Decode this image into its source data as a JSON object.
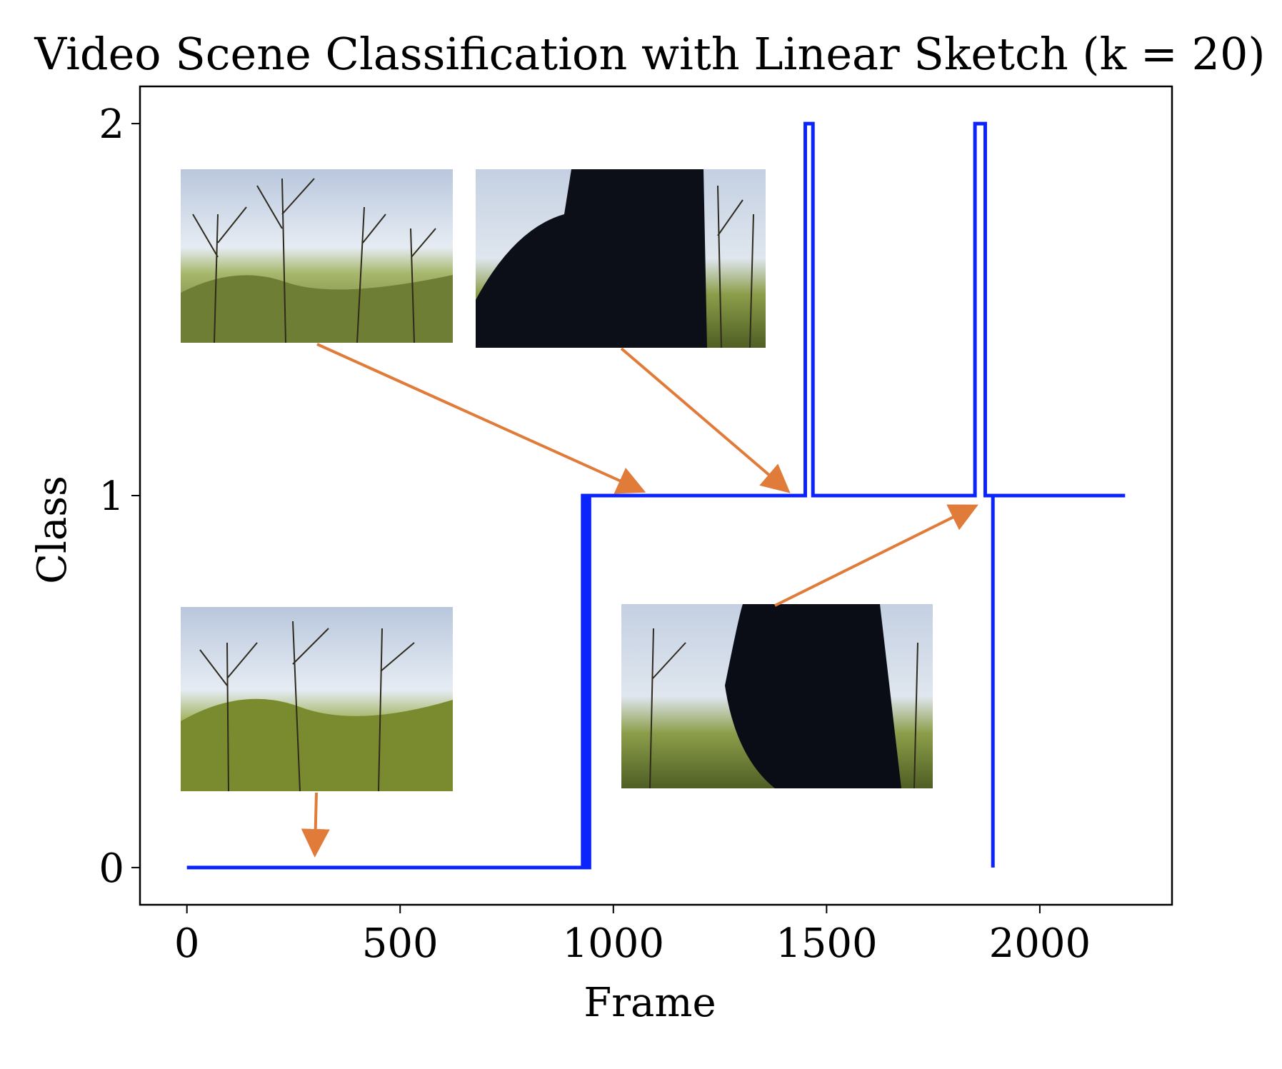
{
  "chart_data": {
    "type": "line",
    "title": "Video Scene Classification with Linear Sketch (k = 20)",
    "xlabel": "Frame",
    "ylabel": "Class",
    "xlim": [
      -110,
      2310
    ],
    "ylim": [
      -0.1,
      2.1
    ],
    "xticks": [
      0,
      500,
      1000,
      1500,
      2000
    ],
    "yticks": [
      0,
      1,
      2
    ],
    "xtick_labels": [
      "0",
      "500",
      "1000",
      "1500",
      "2000"
    ],
    "ytick_labels": [
      "0",
      "1",
      "2"
    ],
    "grid": false,
    "legend": "none",
    "series": [
      {
        "color": "#0b24fb",
        "x": [
          0,
          928,
          928,
          932,
          932,
          936,
          936,
          940,
          940,
          944,
          944,
          1450,
          1450,
          1468,
          1468,
          1848,
          1848,
          1872,
          1872,
          1890,
          1890
        ],
        "y": [
          0,
          0,
          1,
          1,
          0,
          0,
          1,
          1,
          0,
          0,
          1,
          1,
          2,
          2,
          1,
          1,
          2,
          2,
          1,
          1,
          0
        ],
        "extra_segment": {
          "x": [
            1890,
            2200
          ],
          "y": [
            1,
            1
          ]
        }
      }
    ],
    "thumbnails": [
      {
        "scene": "forest",
        "points_to": {
          "x": 1070,
          "y": 1.0
        }
      },
      {
        "scene": "person-blocking",
        "points_to": {
          "x": 1410,
          "y": 1.0
        }
      },
      {
        "scene": "forest",
        "points_to": {
          "x": 300,
          "y": 0.0
        }
      },
      {
        "scene": "person-blocking",
        "points_to": {
          "x": 1850,
          "y": 0.98
        }
      }
    ],
    "arrow_color": "#e07b39"
  }
}
